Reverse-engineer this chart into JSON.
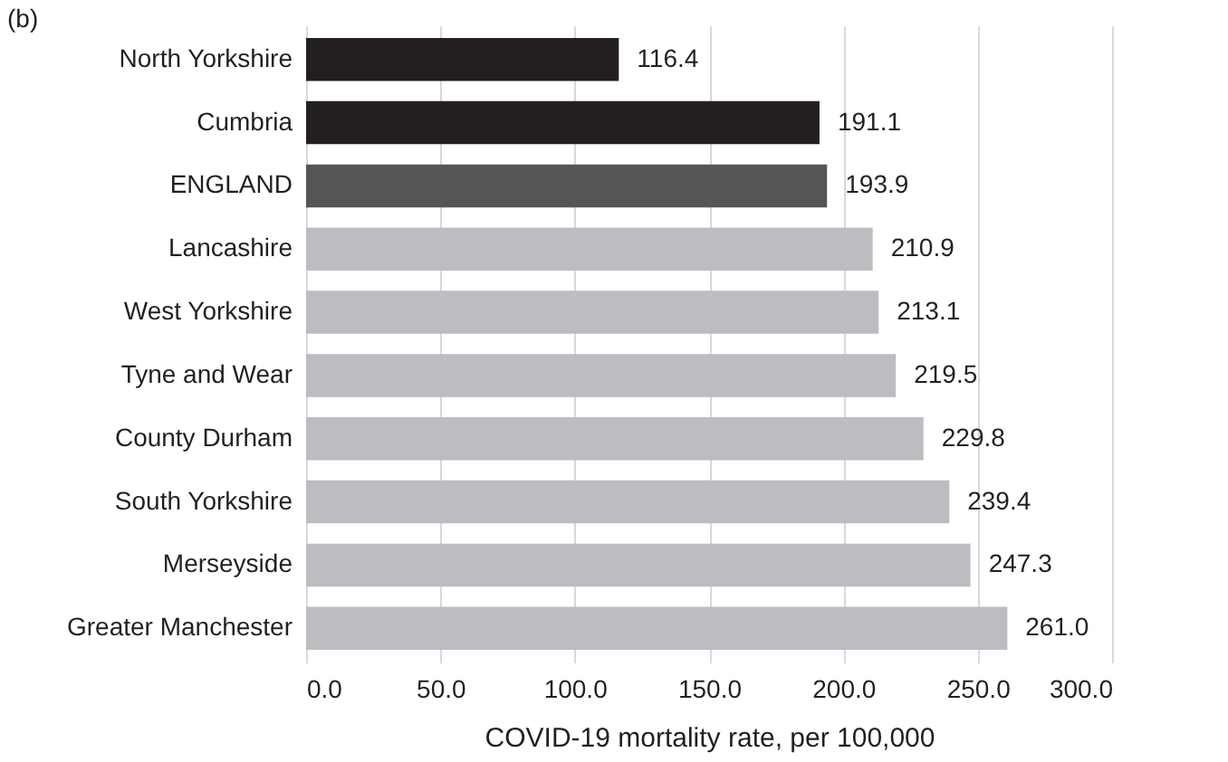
{
  "chart_data": {
    "type": "bar",
    "orientation": "horizontal",
    "title": "(b)",
    "categories": [
      "North Yorkshire",
      "Cumbria",
      "ENGLAND",
      "Lancashire",
      "West Yorkshire",
      "Tyne and Wear",
      "County Durham",
      "South Yorkshire",
      "Merseyside",
      "Greater Manchester"
    ],
    "values": [
      116.4,
      191.1,
      193.9,
      210.9,
      213.1,
      219.5,
      229.8,
      239.4,
      247.3,
      261.0
    ],
    "value_labels": [
      "116.4",
      "191.1",
      "193.9",
      "210.9",
      "213.1",
      "219.5",
      "229.8",
      "239.4",
      "247.3",
      "261.0"
    ],
    "colors": [
      "#231f20",
      "#231f20",
      "#555555",
      "#bcbdc0",
      "#bcbdc0",
      "#bcbdc0",
      "#bcbdc0",
      "#bcbdc0",
      "#bcbdc0",
      "#bcbdc0"
    ],
    "xlabel": "COVID-19 mortality rate, per 100,000",
    "xlim": [
      0,
      300
    ],
    "xticks": [
      {
        "value": 0,
        "label": "0.0"
      },
      {
        "value": 50,
        "label": "50.0"
      },
      {
        "value": 100,
        "label": "100.0"
      },
      {
        "value": 150,
        "label": "150.0"
      },
      {
        "value": 200,
        "label": "200.0"
      },
      {
        "value": 250,
        "label": "250.0"
      },
      {
        "value": 300,
        "label": "300.0"
      }
    ],
    "grid": "x"
  }
}
